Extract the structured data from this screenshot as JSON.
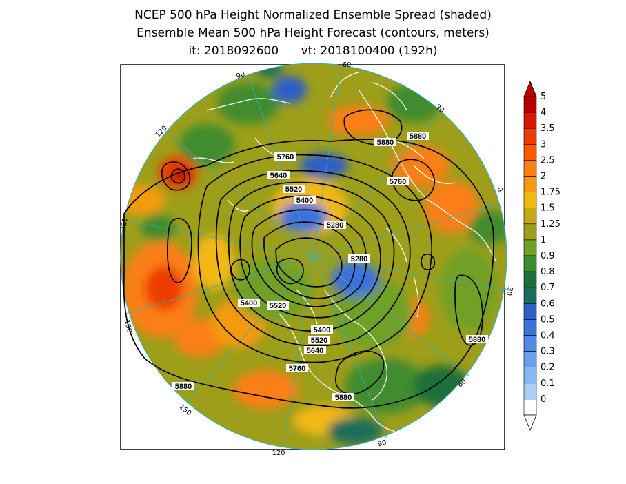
{
  "title": {
    "line1": "NCEP 500 hPa Height Normalized Ensemble Spread (shaded)",
    "line2": "Ensemble Mean 500 hPa Height Forecast (contours, meters)",
    "line3": "it: 2018092600      vt: 2018100400 (192h)"
  },
  "longitude_labels": [
    "60",
    "30",
    "0",
    "30",
    "60",
    "90",
    "120",
    "150",
    "180",
    "150",
    "120",
    "90"
  ],
  "contour_labels": [
    "5880",
    "5880",
    "5760",
    "5760",
    "5640",
    "5520",
    "5400",
    "5280",
    "5280",
    "5400",
    "5520",
    "5400",
    "5520",
    "5640",
    "5760",
    "5880",
    "5880",
    "5880"
  ],
  "colorbar": {
    "labels": [
      "5",
      "4",
      "3.5",
      "3",
      "2.5",
      "2",
      "1.75",
      "1.5",
      "1.25",
      "1",
      "0.9",
      "0.8",
      "0.7",
      "0.6",
      "0.5",
      "0.4",
      "0.3",
      "0.2",
      "0.1",
      "0"
    ],
    "colors": [
      "#b40000",
      "#d81800",
      "#ee3a00",
      "#f75a00",
      "#fa7f12",
      "#f59a10",
      "#f2b812",
      "#c7a713",
      "#9d9e1a",
      "#6fa128",
      "#3f8c2e",
      "#1f6f3a",
      "#1b6d5a",
      "#2f5fc8",
      "#3a72dc",
      "#4e8ae6",
      "#68a2ee",
      "#86b8f2",
      "#a9cff6",
      "#ffffff"
    ]
  }
}
